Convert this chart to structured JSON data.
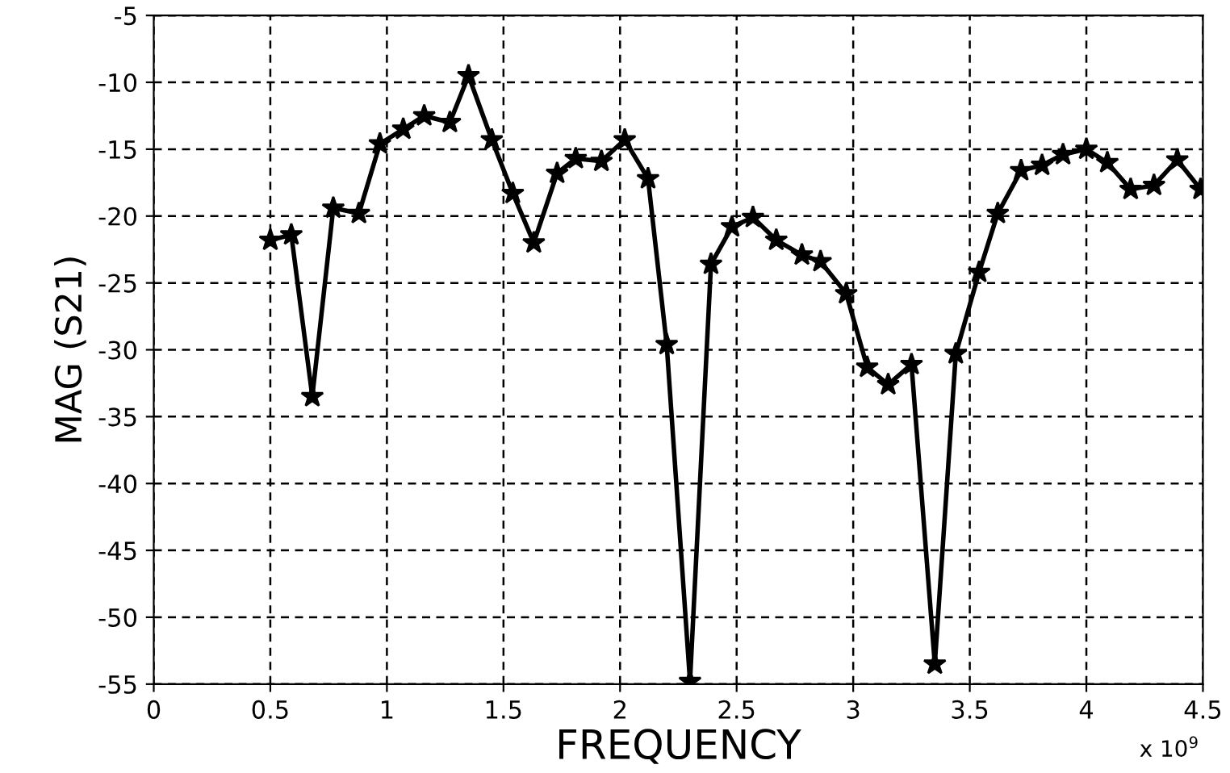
{
  "chart_data": {
    "type": "line",
    "xlabel": "FREQUENCY",
    "ylabel": "MAG (S21)",
    "annotations": [
      "x 10$^{9}$"
    ],
    "x": [
      0.5,
      0.59,
      0.68,
      0.77,
      0.88,
      0.97,
      1.07,
      1.16,
      1.27,
      1.35,
      1.45,
      1.54,
      1.63,
      1.73,
      1.81,
      1.92,
      2.02,
      2.12,
      2.2,
      2.3,
      2.39,
      2.48,
      2.57,
      2.67,
      2.78,
      2.86,
      2.97,
      3.06,
      3.15,
      3.25,
      3.35,
      3.44,
      3.54,
      3.62,
      3.72,
      3.81,
      3.9,
      4.0,
      4.09,
      4.19,
      4.29,
      4.39,
      4.49
    ],
    "series": [
      {
        "color": "#000000",
        "values": [
          -21.8,
          -21.4,
          -33.5,
          -19.4,
          -19.8,
          -14.6,
          -13.5,
          -12.5,
          -13.0,
          -9.5,
          -14.3,
          -18.3,
          -22.0,
          -16.8,
          -15.7,
          -15.9,
          -14.3,
          -17.2,
          -29.6,
          -54.8,
          -23.6,
          -20.8,
          -20.1,
          -21.8,
          -22.9,
          -23.4,
          -25.8,
          -31.3,
          -32.6,
          -31.1,
          -53.5,
          -30.3,
          -24.2,
          -19.8,
          -16.6,
          -16.2,
          -15.4,
          -15.0,
          -16.0,
          -18.0,
          -17.7,
          -15.8,
          -18.0
        ]
      }
    ],
    "xlim": [
      0,
      4.5
    ],
    "xticks": [
      0,
      0.5,
      1,
      1.5,
      2,
      2.5,
      3,
      3.5,
      4,
      4.5
    ],
    "ylim": [
      -55,
      -5
    ],
    "yticks": [
      -55,
      -50,
      -45,
      -40,
      -35,
      -30,
      -25,
      -20,
      -15,
      -10,
      -5
    ],
    "grid": true,
    "marker": "star",
    "line_style": "solid"
  }
}
